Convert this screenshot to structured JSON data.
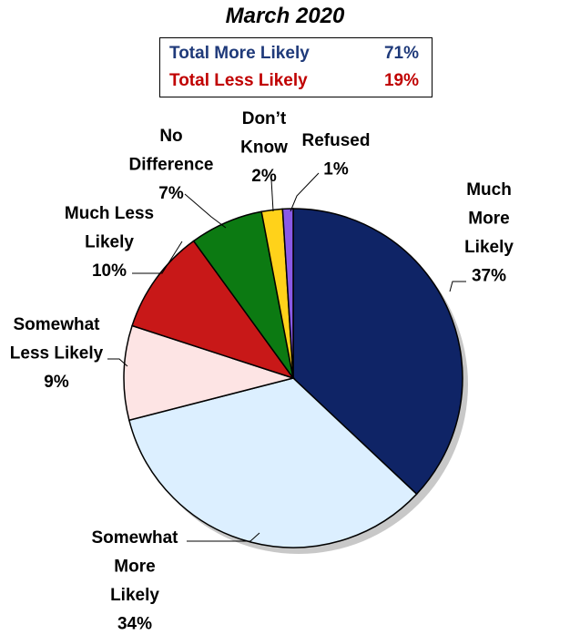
{
  "chart_data": {
    "type": "pie",
    "title": "March 2020",
    "summary": [
      {
        "label": "Total More Likely",
        "value": "71%",
        "color": "#1f3a7a"
      },
      {
        "label": "Total Less Likely",
        "value": "19%",
        "color": "#c00000"
      }
    ],
    "slices": [
      {
        "label": [
          "Much",
          "More",
          "Likely",
          "37%"
        ],
        "value": 37,
        "color": "#0f2466"
      },
      {
        "label": [
          "Somewhat",
          "More",
          "Likely",
          "34%"
        ],
        "value": 34,
        "color": "#dcefff"
      },
      {
        "label": [
          "Somewhat",
          "Less Likely",
          "9%"
        ],
        "value": 9,
        "color": "#fde4e4"
      },
      {
        "label": [
          "Much Less",
          "Likely",
          "10%"
        ],
        "value": 10,
        "color": "#c81818"
      },
      {
        "label": [
          "No",
          "Difference",
          "7%"
        ],
        "value": 7,
        "color": "#0c7a12"
      },
      {
        "label": [
          "Don’t",
          "Know",
          "2%"
        ],
        "value": 2,
        "color": "#ffd21a"
      },
      {
        "label": [
          "Refused",
          "1%"
        ],
        "value": 1,
        "color": "#8a5ae6"
      }
    ]
  }
}
